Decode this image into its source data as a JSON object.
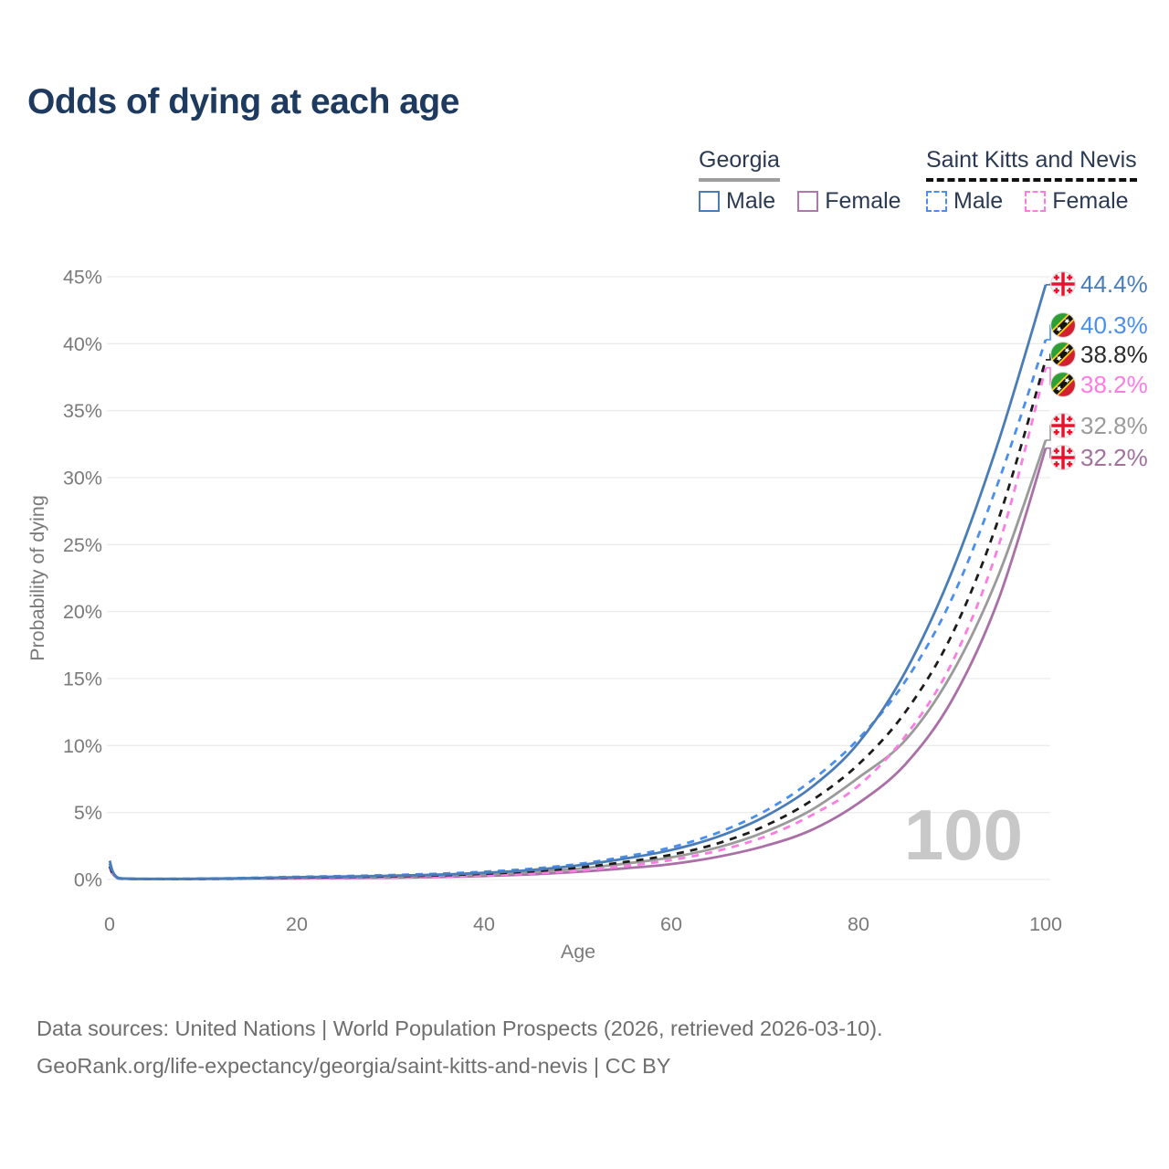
{
  "title": "Odds of dying at each age",
  "legend": {
    "groups": [
      {
        "country": "Georgia",
        "underline_style": "solid",
        "underline_color": "#9e9e9e",
        "items": [
          {
            "label": "Male",
            "color": "#4a7db8",
            "dash": false
          },
          {
            "label": "Female",
            "color": "#b076ad",
            "dash": false
          }
        ]
      },
      {
        "country": "Saint Kitts and Nevis",
        "underline_style": "dashed",
        "underline_color": "#111111",
        "items": [
          {
            "label": "Male",
            "color": "#4a8ff0",
            "dash": true
          },
          {
            "label": "Female",
            "color": "#fb7de4",
            "dash": true
          }
        ]
      }
    ]
  },
  "watermark": "100",
  "footer": {
    "line1": "Data sources: United Nations | World Population Prospects (2026, retrieved 2026-03-10).",
    "line2": "GeoRank.org/life-expectancy/georgia/saint-kitts-and-nevis | CC BY"
  },
  "chart_data": {
    "type": "line",
    "xlabel": "Age",
    "ylabel": "Probability of dying",
    "xlim": [
      0,
      100
    ],
    "ylim": [
      0,
      45
    ],
    "grid": "horizontal",
    "x_tick_values": [
      0,
      20,
      40,
      60,
      80,
      100
    ],
    "x_tick_labels": [
      "0",
      "20",
      "40",
      "60",
      "80",
      "100"
    ],
    "y_tick_values": [
      0,
      5,
      10,
      15,
      20,
      25,
      30,
      35,
      40,
      45
    ],
    "y_tick_labels": [
      "0%",
      "5%",
      "10%",
      "15%",
      "20%",
      "25%",
      "30%",
      "35%",
      "40%",
      "45%"
    ],
    "ages": [
      0,
      1,
      5,
      10,
      15,
      20,
      25,
      30,
      35,
      40,
      45,
      50,
      55,
      60,
      65,
      70,
      75,
      80,
      85,
      90,
      95,
      100
    ],
    "series": [
      {
        "name": "Georgia Male",
        "country": "Georgia",
        "sex": "Male",
        "color": "#4a7db8",
        "label_color": "#4a7db8",
        "dash": false,
        "flag": "georgia",
        "end_label": "44.4%",
        "values": [
          1.4,
          0.1,
          0.05,
          0.06,
          0.1,
          0.17,
          0.22,
          0.28,
          0.36,
          0.5,
          0.7,
          1.05,
          1.55,
          2.2,
          3.2,
          4.7,
          6.9,
          10.2,
          15.5,
          23.0,
          32.8,
          44.4
        ]
      },
      {
        "name": "Saint Kitts and Nevis Male",
        "country": "Saint Kitts and Nevis",
        "sex": "Male",
        "color": "#4a8ff0",
        "label_color": "#4a8ff0",
        "dash": true,
        "flag": "skn",
        "end_label": "40.3%",
        "values": [
          1.2,
          0.09,
          0.05,
          0.07,
          0.12,
          0.2,
          0.26,
          0.33,
          0.43,
          0.58,
          0.8,
          1.15,
          1.7,
          2.4,
          3.5,
          5.1,
          7.4,
          10.5,
          14.8,
          21.0,
          29.8,
          40.3
        ]
      },
      {
        "name": "Saint Kitts and Nevis Both sexes",
        "country": "Saint Kitts and Nevis",
        "sex": "Both",
        "color": "#1c1c1c",
        "label_color": "#2b2b2b",
        "dash": true,
        "flag": "skn",
        "end_label": "38.8%",
        "values": [
          1.0,
          0.08,
          0.04,
          0.05,
          0.09,
          0.14,
          0.19,
          0.24,
          0.31,
          0.43,
          0.6,
          0.88,
          1.3,
          1.85,
          2.7,
          4.0,
          5.9,
          8.6,
          12.5,
          18.3,
          27.0,
          38.8
        ]
      },
      {
        "name": "Saint Kitts and Nevis Female",
        "country": "Saint Kitts and Nevis",
        "sex": "Female",
        "color": "#fb7de4",
        "label_color": "#fb7de4",
        "dash": true,
        "flag": "skn",
        "end_label": "38.2%",
        "values": [
          0.9,
          0.07,
          0.03,
          0.04,
          0.06,
          0.09,
          0.12,
          0.16,
          0.21,
          0.3,
          0.44,
          0.65,
          1.0,
          1.45,
          2.15,
          3.2,
          4.8,
          7.0,
          10.7,
          16.2,
          25.0,
          38.2
        ]
      },
      {
        "name": "Georgia Both sexes",
        "country": "Georgia",
        "sex": "Both",
        "color": "#9a9a9a",
        "label_color": "#9a9a9a",
        "dash": false,
        "flag": "georgia",
        "end_label": "32.8%",
        "values": [
          1.2,
          0.09,
          0.04,
          0.05,
          0.08,
          0.13,
          0.17,
          0.21,
          0.28,
          0.38,
          0.55,
          0.8,
          1.18,
          1.65,
          2.4,
          3.55,
          5.2,
          7.6,
          10.4,
          15.4,
          22.8,
          32.8
        ]
      },
      {
        "name": "Georgia Female",
        "country": "Georgia",
        "sex": "Female",
        "color": "#ab6fa8",
        "label_color": "#a2719e",
        "dash": false,
        "flag": "georgia",
        "end_label": "32.2%",
        "values": [
          1.0,
          0.08,
          0.03,
          0.04,
          0.06,
          0.08,
          0.1,
          0.13,
          0.18,
          0.26,
          0.38,
          0.57,
          0.83,
          1.15,
          1.7,
          2.5,
          3.7,
          5.7,
          8.6,
          13.4,
          21.0,
          32.2
        ]
      }
    ]
  }
}
